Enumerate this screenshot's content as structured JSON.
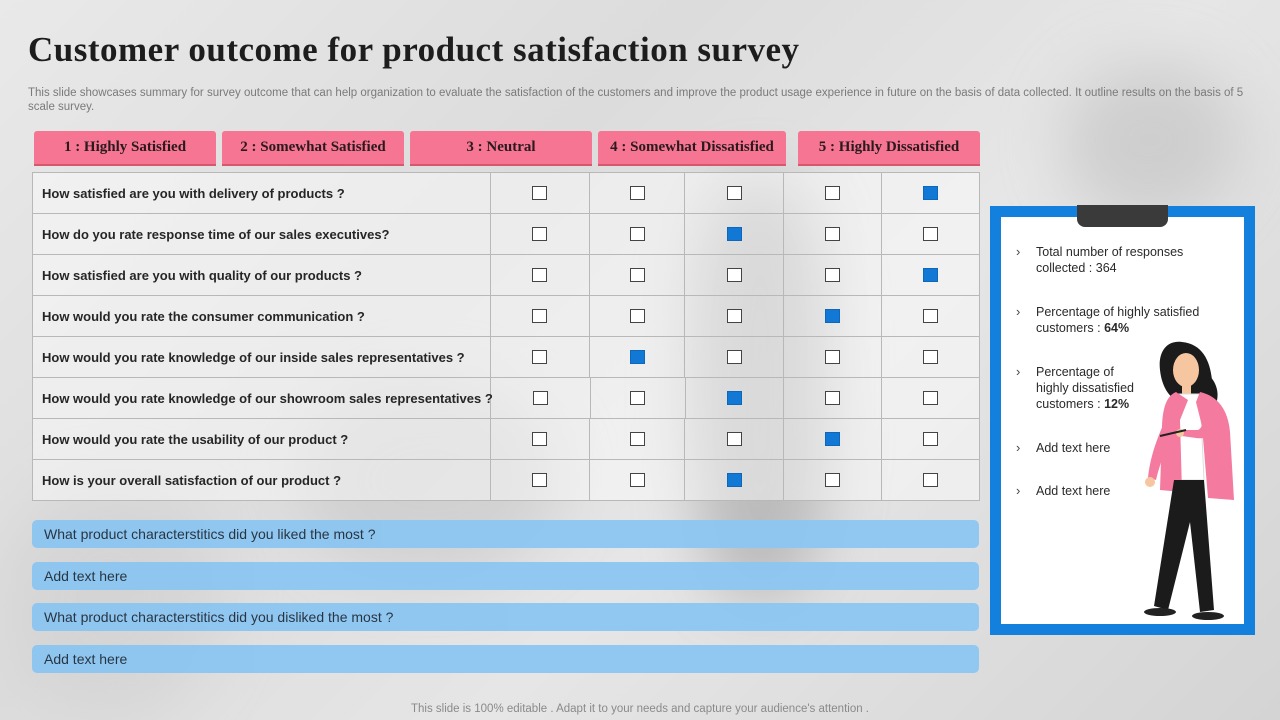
{
  "title": "Customer outcome for product satisfaction survey",
  "subtitle": "This slide showcases summary for survey outcome that can help organization to evaluate the satisfaction of the customers and improve the product usage experience in future on the basis of data collected. It outline results on the basis of 5 scale survey.",
  "scale_headers": [
    "1 : Highly Satisfied",
    "2 : Somewhat Satisfied",
    "3 : Neutral",
    "4 : Somewhat Dissatisfied",
    "5 : Highly Dissatisfied"
  ],
  "questions": [
    {
      "text": "How satisfied are you with delivery of products  ?",
      "selected": 5
    },
    {
      "text": "How do you rate response  time of our sales executives?",
      "selected": 3
    },
    {
      "text": "How satisfied are you with quality of our products  ?",
      "selected": 5
    },
    {
      "text": "How would you rate the consumer communication ?",
      "selected": 4
    },
    {
      "text": "How would you rate knowledge of our inside sales representatives ?",
      "selected": 2
    },
    {
      "text": "How would you rate knowledge of our showroom sales representatives ?",
      "selected": 3
    },
    {
      "text": "How would you rate the usability of our product  ?",
      "selected": 4
    },
    {
      "text": "How is your overall satisfaction  of our product  ?",
      "selected": 3
    }
  ],
  "feedback_bars": [
    "What product characterstitics did you liked the most ?",
    "Add text here",
    "What product characterstitics did you disliked the most ?",
    "Add text here"
  ],
  "clipboard": {
    "items": [
      {
        "lines": [
          "Total number of responses",
          "collected : 364"
        ],
        "bold": ""
      },
      {
        "lines": [
          "Percentage of highly satisfied",
          "customers : "
        ],
        "bold": "64%"
      },
      {
        "lines": [
          "Percentage of",
          "highly dissatisfied",
          "customers : "
        ],
        "bold": "12%"
      },
      {
        "lines": [
          "Add text here"
        ],
        "bold": ""
      },
      {
        "lines": [
          "Add text here"
        ],
        "bold": ""
      }
    ]
  },
  "footer": "This slide is 100% editable . Adapt it to your needs and capture your audience's attention .",
  "colors": {
    "header_pink": "#f57592",
    "checked_blue": "#1178d6",
    "bar_blue": "#8cc6f2",
    "clipboard_blue": "#1280dc"
  }
}
